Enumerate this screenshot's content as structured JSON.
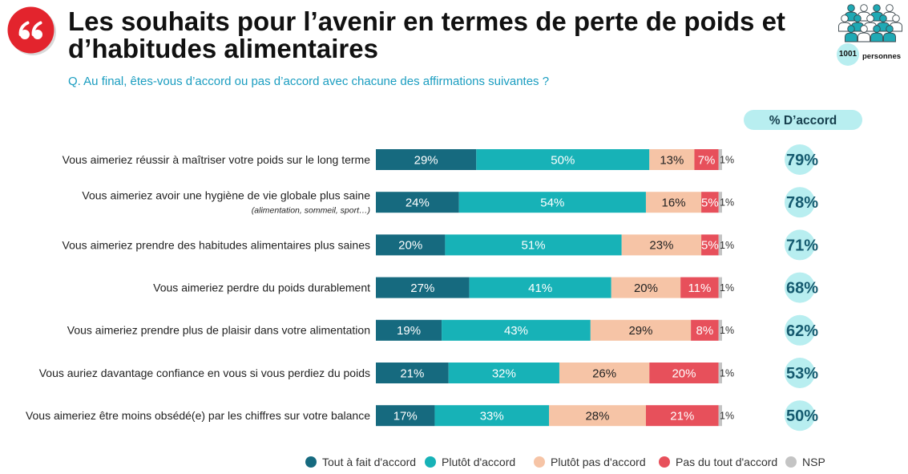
{
  "header": {
    "title_line1": "Les souhaits pour l’avenir en termes de perte de poids et",
    "title_line2": "d’habitudes alimentaires",
    "question": "Q. Au final, êtes-vous d’accord ou pas d’accord avec chacune des affirmations suivantes ?"
  },
  "sample": {
    "count": "1001",
    "label": "personnes"
  },
  "icons": {
    "quote": "quote-icon",
    "sample": "people-group-icon"
  },
  "colors": {
    "brand_red": "#e3242d",
    "question": "#1a9dc0",
    "accent_light": "#b8eef0",
    "accent_dark": "#155a6f"
  },
  "chart_data": {
    "type": "bar",
    "orientation": "horizontal",
    "stacked": true,
    "unit": "%",
    "xlim": [
      0,
      100
    ],
    "grid": false,
    "legend_position": "bottom",
    "categories": [
      "Vous aimeriez réussir à maîtriser votre poids sur le long terme",
      "Vous aimeriez avoir une hygiène de vie globale plus saine",
      "Vous aimeriez prendre des habitudes alimentaires plus saines",
      "Vous aimeriez perdre du poids durablement",
      "Vous aimeriez prendre plus de plaisir dans votre alimentation",
      "Vous auriez davantage confiance en vous si vous perdiez du poids",
      "Vous aimeriez être moins obsédé(e) par les chiffres sur votre balance"
    ],
    "category_notes": [
      {
        "index": 1,
        "text": "(alimentation, sommeil, sport…)"
      }
    ],
    "series": [
      {
        "name": "Tout à fait d'accord",
        "color": "#166a7f",
        "label_color": "#ffffff",
        "values": [
          29,
          24,
          20,
          27,
          19,
          21,
          17
        ]
      },
      {
        "name": "Plutôt d'accord",
        "color": "#17b2b7",
        "label_color": "#ffffff",
        "values": [
          50,
          54,
          51,
          41,
          43,
          32,
          33
        ]
      },
      {
        "name": "Plutôt pas d'accord",
        "color": "#f6c4a6",
        "label_color": "#222222",
        "values": [
          13,
          16,
          23,
          20,
          29,
          26,
          28
        ]
      },
      {
        "name": "Pas du tout d'accord",
        "color": "#e7505b",
        "label_color": "#ffffff",
        "values": [
          7,
          5,
          5,
          11,
          8,
          20,
          21
        ]
      },
      {
        "name": "NSP",
        "color": "#c4c4c4",
        "label_color": "#333333",
        "values": [
          1,
          1,
          1,
          1,
          1,
          1,
          1
        ]
      }
    ],
    "agree_header": "% D’accord",
    "agree_totals": [
      79,
      78,
      71,
      68,
      62,
      53,
      50
    ]
  }
}
